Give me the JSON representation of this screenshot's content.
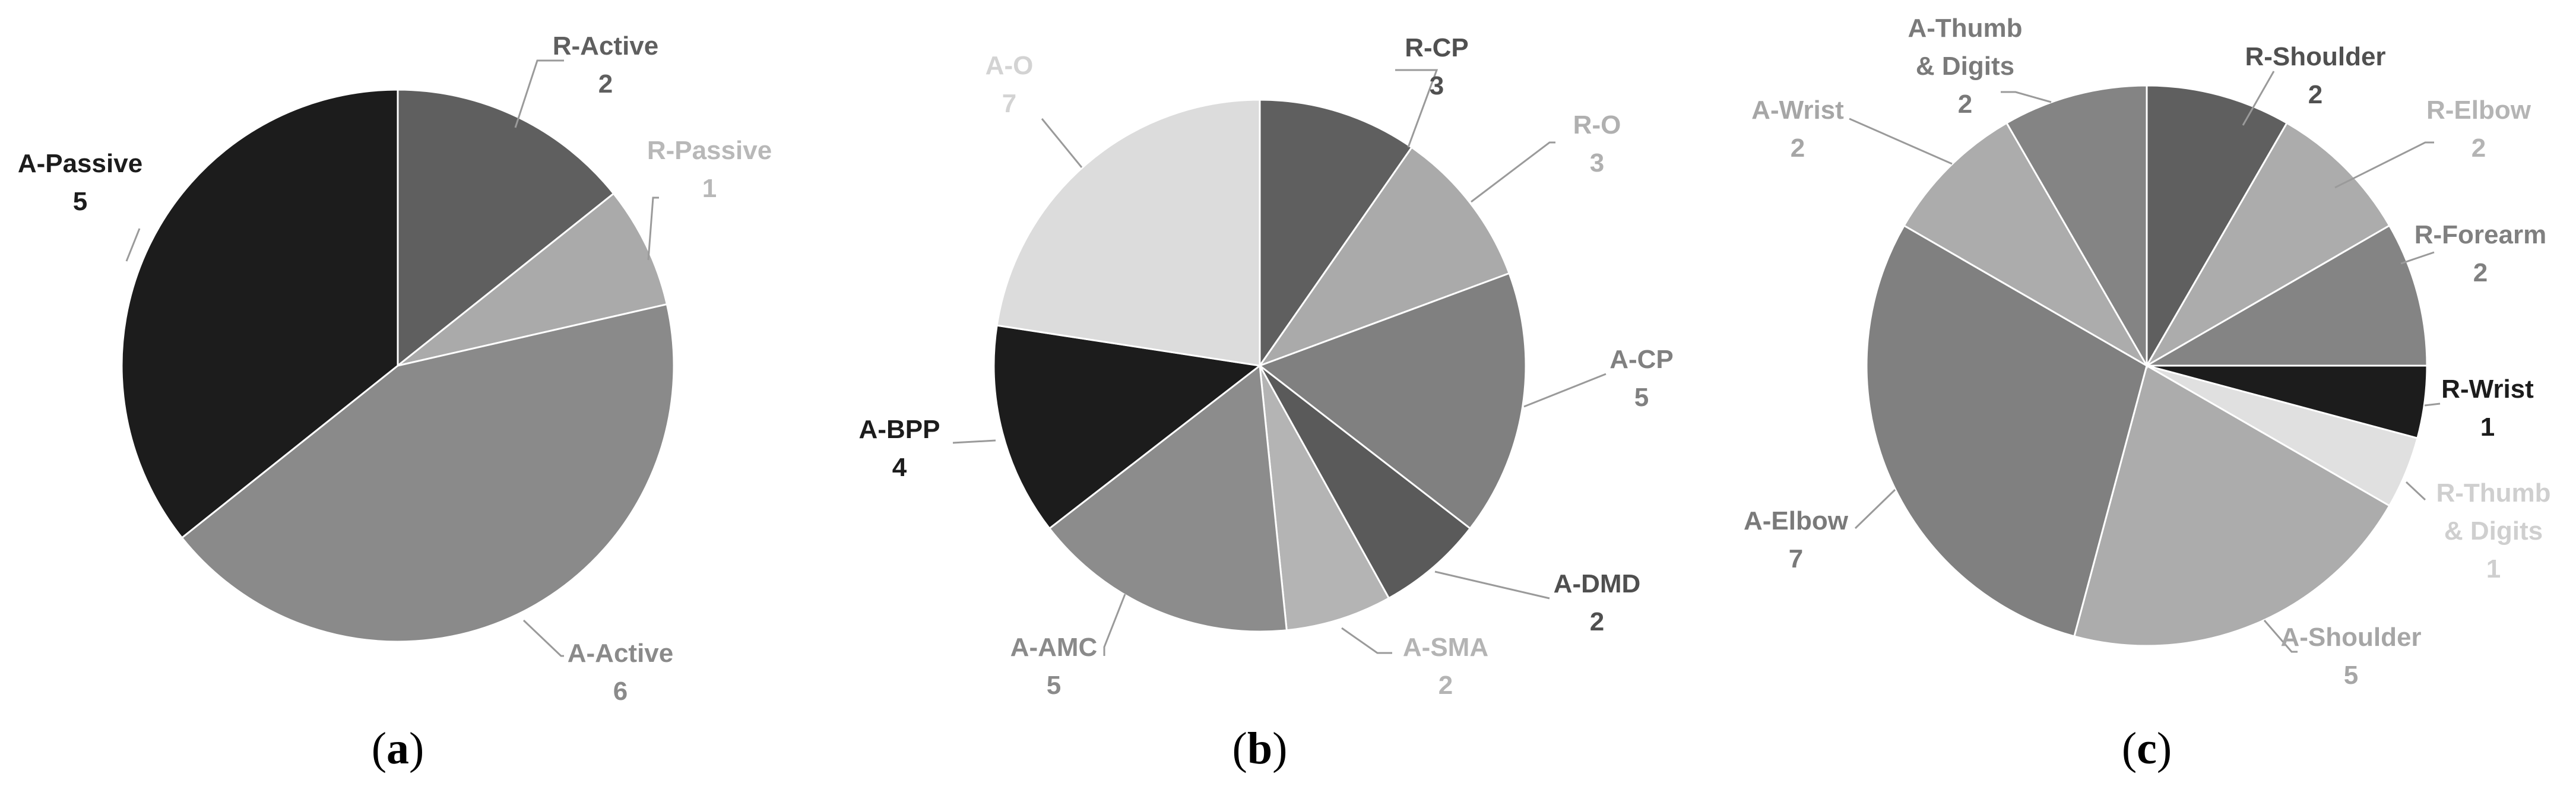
{
  "chart_data": [
    {
      "type": "pie",
      "panel_label": "a",
      "slices": [
        {
          "name": "R-Active",
          "value": 2,
          "color": "#5f5f5f",
          "label_color": "#5f5f5f"
        },
        {
          "name": "R-Passive",
          "value": 1,
          "color": "#aaaaaa",
          "label_color": "#b8b8b8"
        },
        {
          "name": "A-Active",
          "value": 6,
          "color": "#8a8a8a",
          "label_color": "#8a8a8a"
        },
        {
          "name": "A-Passive",
          "value": 5,
          "color": "#1c1c1c",
          "label_color": "#1c1c1c"
        }
      ]
    },
    {
      "type": "pie",
      "panel_label": "b",
      "slices": [
        {
          "name": "R-CP",
          "value": 3,
          "color": "#5f5f5f",
          "label_color": "#505050"
        },
        {
          "name": "R-O",
          "value": 3,
          "color": "#aaaaaa",
          "label_color": "#b0b0b0"
        },
        {
          "name": "A-CP",
          "value": 5,
          "color": "#808080",
          "label_color": "#808080"
        },
        {
          "name": "A-DMD",
          "value": 2,
          "color": "#5a5a5a",
          "label_color": "#4f4f4f"
        },
        {
          "name": "A-SMA",
          "value": 2,
          "color": "#b4b4b4",
          "label_color": "#b4b4b4"
        },
        {
          "name": "A-AMC",
          "value": 5,
          "color": "#8c8c8c",
          "label_color": "#8a8a8a"
        },
        {
          "name": "A-BPP",
          "value": 4,
          "color": "#1c1c1c",
          "label_color": "#1c1c1c"
        },
        {
          "name": "A-O",
          "value": 7,
          "color": "#dcdcdc",
          "label_color": "#d3d3d3"
        }
      ]
    },
    {
      "type": "pie",
      "panel_label": "c",
      "slices": [
        {
          "name": "R-Shoulder",
          "value": 2,
          "color": "#5f5f5f",
          "label_color": "#505050"
        },
        {
          "name": "R-Elbow",
          "value": 2,
          "color": "#acacac",
          "label_color": "#b4b4b4"
        },
        {
          "name": "R-Forearm",
          "value": 2,
          "color": "#848484",
          "label_color": "#808080"
        },
        {
          "name": "R-Wrist",
          "value": 1,
          "color": "#1c1c1c",
          "label_color": "#1c1c1c"
        },
        {
          "name": "R-Thumb & Digits",
          "value": 1,
          "color": "#e0e0e0",
          "label_color": "#cfcfcf"
        },
        {
          "name": "A-Shoulder",
          "value": 5,
          "color": "#acacac",
          "label_color": "#a6a6a6"
        },
        {
          "name": "A-Elbow",
          "value": 7,
          "color": "#808080",
          "label_color": "#7a7a7a"
        },
        {
          "name": "A-Wrist",
          "value": 2,
          "color": "#acacac",
          "label_color": "#a6a6a6"
        },
        {
          "name": "A-Thumb & Digits",
          "value": 2,
          "color": "#848484",
          "label_color": "#7a7a7a"
        }
      ]
    }
  ]
}
